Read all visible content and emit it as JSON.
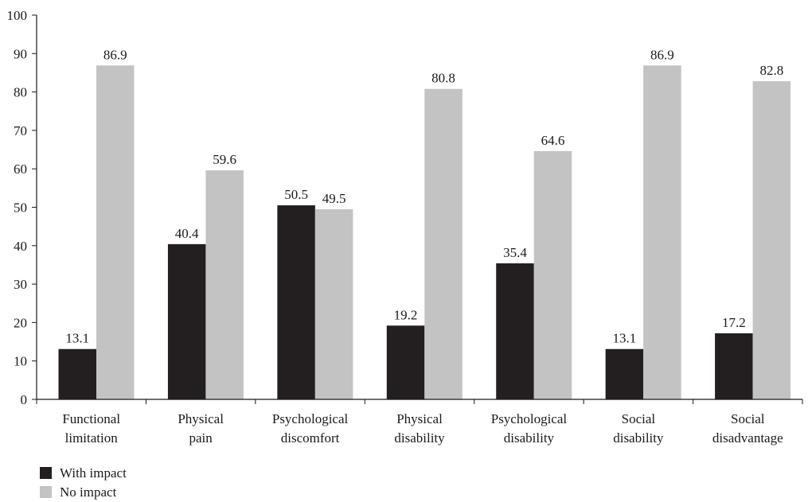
{
  "chart_data": {
    "type": "bar",
    "categories": [
      [
        "Functional",
        "limitation"
      ],
      [
        "Physical",
        "pain"
      ],
      [
        "Psychological",
        "discomfort"
      ],
      [
        "Physical",
        "disability"
      ],
      [
        "Psychological",
        "disability"
      ],
      [
        "Social",
        "disability"
      ],
      [
        "Social",
        "disadvantage"
      ]
    ],
    "series": [
      {
        "name": "With impact",
        "color": "#231f20",
        "values": [
          13.1,
          40.4,
          50.5,
          19.2,
          35.4,
          13.1,
          17.2
        ]
      },
      {
        "name": "No impact",
        "color": "#c3c3c3",
        "values": [
          86.9,
          59.6,
          49.5,
          80.8,
          64.6,
          86.9,
          82.8
        ]
      }
    ],
    "ylim": [
      0,
      100
    ],
    "yticks": [
      0,
      10,
      20,
      30,
      40,
      50,
      60,
      70,
      80,
      90,
      100
    ],
    "title": "",
    "xlabel": "",
    "ylabel": "",
    "grid": false,
    "legend_position": "bottom-left"
  }
}
